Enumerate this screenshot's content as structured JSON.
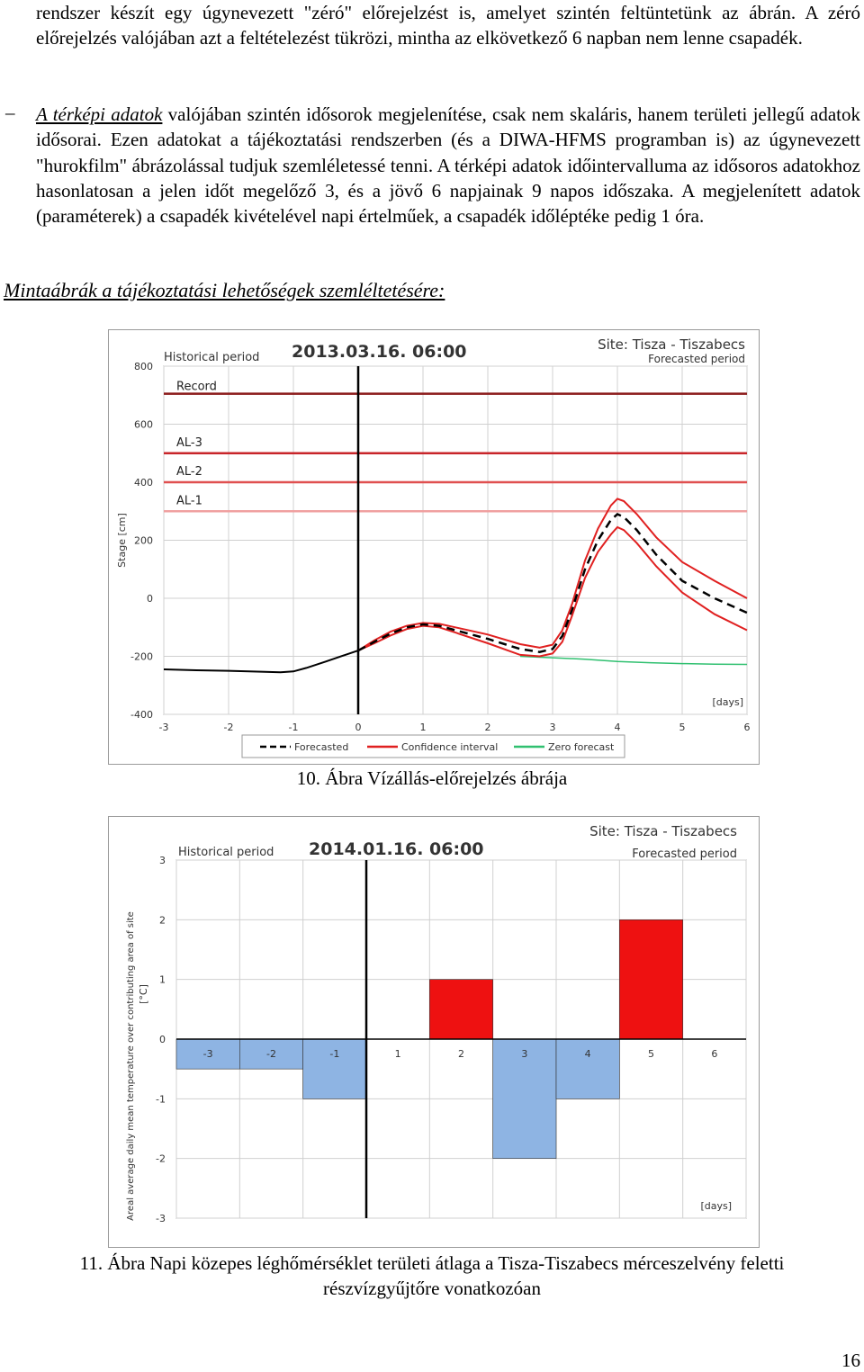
{
  "text": {
    "intro_p1": "rendszer készít egy úgynevezett \"zéró\" előrejelzést is, amelyet szintén feltüntetünk az ábrán. A zéró előrejelzés valójában azt a feltételezést tükrözi, mintha az elkövetkező 6 napban nem lenne csapadék.",
    "bullet_dash": "–",
    "bullet_lead": "A térképi adatok",
    "bullet_rest": " valójában szintén idősorok megjelenítése, csak nem skaláris, hanem területi jellegű adatok idősorai. Ezen adatokat a tájékoztatási rendszerben (és a DIWA-HFMS programban is) az úgynevezett \"hurokfilm\" ábrázolással tudjuk szemléletessé tenni. A térképi adatok időintervalluma az idősoros adatokhoz hasonlatosan a jelen időt megelőző 3, és a jövő 6 napjainak 9 napos időszaka. A megjelenített adatok (paraméterek) a csapadék kivételével napi értelműek, a csapadék időléptéke pedig 1 óra.",
    "section_heading": "Mintaábrák a tájékoztatási lehetőségek szemléltetésére:",
    "caption1": "10. Ábra Vízállás-előrejelzés ábrája",
    "caption2": "11. Ábra Napi közepes léghőmérséklet területi átlaga a Tisza-Tiszabecs mérceszelvény feletti részvízgyűjtőre vonatkozóan",
    "page_number": "16"
  },
  "chart_data": [
    {
      "type": "line",
      "title": "2013.03.16. 06:00",
      "site": "Site: Tisza - Tiszabecs",
      "historical_label": "Historical period",
      "forecasted_label": "Forecasted period",
      "ylabel": "Stage [cm]",
      "xunit": "[days]",
      "ylim": [
        -400,
        800
      ],
      "xlim": [
        -3,
        6
      ],
      "yticks": [
        "800",
        "600",
        "400",
        "200",
        "0",
        "-200",
        "-400"
      ],
      "xticks": [
        "-3",
        "-2",
        "-1",
        "0",
        "1",
        "2",
        "3",
        "4",
        "5",
        "6"
      ],
      "now_x": 0,
      "thresholds": [
        {
          "label": "Record",
          "value": 705,
          "color": "#8b1a1a"
        },
        {
          "label": "AL-3",
          "value": 500,
          "color": "#c8252a"
        },
        {
          "label": "AL-2",
          "value": 400,
          "color": "#e05050"
        },
        {
          "label": "AL-1",
          "value": 300,
          "color": "#f0a0a0"
        }
      ],
      "legend": [
        "Forecasted",
        "Confidence interval",
        "Zero forecast"
      ],
      "colors": {
        "observed": "#000000",
        "forecast": "#000000",
        "confidence": "#e02020",
        "zero": "#30c070",
        "grid": "#d0d0d0"
      },
      "observed": {
        "x": [
          -3,
          -2.5,
          -2,
          -1.5,
          -1.2,
          -1,
          -0.8,
          -0.5,
          -0.2,
          0
        ],
        "y": [
          -245,
          -248,
          -250,
          -253,
          -255,
          -252,
          -240,
          -218,
          -195,
          -180
        ]
      },
      "forecast": {
        "x": [
          0,
          0.25,
          0.5,
          0.75,
          1,
          1.25,
          1.5,
          2,
          2.5,
          2.8,
          3,
          3.15,
          3.3,
          3.5,
          3.7,
          3.9,
          4,
          4.1,
          4.3,
          4.6,
          5,
          5.5,
          6
        ],
        "y": [
          -180,
          -150,
          -122,
          -100,
          -90,
          -95,
          -110,
          -140,
          -175,
          -185,
          -175,
          -130,
          -40,
          100,
          200,
          270,
          290,
          280,
          235,
          150,
          60,
          0,
          -50
        ]
      },
      "upper": {
        "x": [
          0,
          0.25,
          0.5,
          0.75,
          1,
          1.25,
          1.5,
          2,
          2.5,
          2.8,
          3,
          3.15,
          3.3,
          3.5,
          3.7,
          3.9,
          4,
          4.1,
          4.3,
          4.6,
          5,
          5.5,
          6
        ],
        "y": [
          -180,
          -145,
          -115,
          -95,
          -85,
          -88,
          -100,
          -125,
          -158,
          -170,
          -160,
          -110,
          -20,
          130,
          240,
          320,
          343,
          335,
          290,
          210,
          125,
          60,
          0
        ]
      },
      "lower": {
        "x": [
          0,
          0.25,
          0.5,
          0.75,
          1,
          1.25,
          1.5,
          2,
          2.5,
          2.8,
          3,
          3.15,
          3.3,
          3.5,
          3.7,
          3.9,
          4,
          4.1,
          4.3,
          4.6,
          5,
          5.5,
          6
        ],
        "y": [
          -180,
          -155,
          -128,
          -106,
          -95,
          -100,
          -118,
          -155,
          -195,
          -200,
          -190,
          -150,
          -60,
          70,
          160,
          220,
          245,
          235,
          190,
          110,
          20,
          -55,
          -110
        ]
      },
      "zero": {
        "x": [
          2.5,
          3,
          3.5,
          4,
          4.5,
          5,
          5.5,
          6
        ],
        "y": [
          -200,
          -205,
          -210,
          -218,
          -222,
          -225,
          -227,
          -228
        ]
      }
    },
    {
      "type": "bar",
      "title": "2014.01.16. 06:00",
      "site": "Site: Tisza - Tiszabecs",
      "historical_label": "Historical period",
      "forecasted_label": "Forecasted period",
      "ylabel": "Areal average daily mean temperature over contributing area of site",
      "yunit": "[°C]",
      "xunit": "[days]",
      "ylim": [
        -3,
        3
      ],
      "yticks": [
        "3",
        "2",
        "1",
        "0",
        "-1",
        "-2",
        "-3"
      ],
      "categories": [
        "-3",
        "-2",
        "-1",
        "1",
        "2",
        "3",
        "4",
        "5",
        "6"
      ],
      "values": [
        -0.5,
        -0.5,
        -1,
        0,
        1,
        -2,
        -1,
        2,
        0
      ],
      "colors": {
        "positive": "#ee1111",
        "negative": "#8eb4e3",
        "grid": "#d0d0d0"
      }
    }
  ]
}
